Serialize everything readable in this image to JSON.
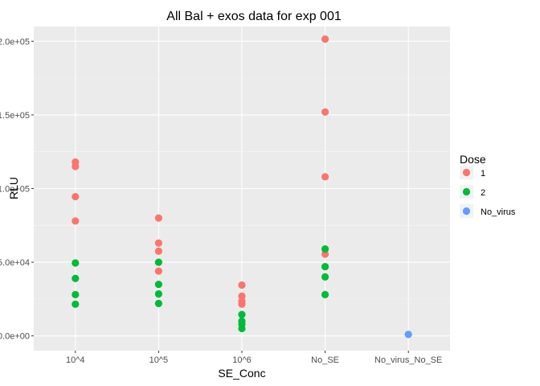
{
  "chart_data": {
    "type": "scatter",
    "title": "All Bal + exos data for exp 001",
    "xlabel": "SE_Conc",
    "ylabel": "RLU",
    "categories": [
      "10^4",
      "10^5",
      "10^6",
      "No_SE",
      "No_virus_No_SE"
    ],
    "ylim": [
      -10000,
      210000
    ],
    "yticks": [
      {
        "value": 0,
        "label": "0.0e+00"
      },
      {
        "value": 50000,
        "label": "5.0e+04"
      },
      {
        "value": 100000,
        "label": "1.0e+05"
      },
      {
        "value": 150000,
        "label": "1.5e+05"
      },
      {
        "value": 200000,
        "label": "2.0e+05"
      }
    ],
    "grid": true,
    "legend": {
      "title": "Dose",
      "position": "right",
      "entries": [
        "1",
        "2",
        "No_virus"
      ]
    },
    "series": [
      {
        "name": "1",
        "color": "#F8766D",
        "points": [
          {
            "x": "10^4",
            "y": 118000
          },
          {
            "x": "10^4",
            "y": 115000
          },
          {
            "x": "10^4",
            "y": 94500
          },
          {
            "x": "10^4",
            "y": 78000
          },
          {
            "x": "10^5",
            "y": 80000
          },
          {
            "x": "10^5",
            "y": 63000
          },
          {
            "x": "10^5",
            "y": 57500
          },
          {
            "x": "10^5",
            "y": 44000
          },
          {
            "x": "10^6",
            "y": 34500
          },
          {
            "x": "10^6",
            "y": 27000
          },
          {
            "x": "10^6",
            "y": 23500
          },
          {
            "x": "10^6",
            "y": 21500
          },
          {
            "x": "No_SE",
            "y": 201500
          },
          {
            "x": "No_SE",
            "y": 152000
          },
          {
            "x": "No_SE",
            "y": 108000
          },
          {
            "x": "No_SE",
            "y": 55500
          }
        ]
      },
      {
        "name": "2",
        "color": "#00BA38",
        "points": [
          {
            "x": "10^4",
            "y": 49500
          },
          {
            "x": "10^4",
            "y": 39000
          },
          {
            "x": "10^4",
            "y": 28000
          },
          {
            "x": "10^4",
            "y": 21500
          },
          {
            "x": "10^5",
            "y": 50000
          },
          {
            "x": "10^5",
            "y": 35000
          },
          {
            "x": "10^5",
            "y": 28500
          },
          {
            "x": "10^5",
            "y": 22000
          },
          {
            "x": "10^6",
            "y": 14500
          },
          {
            "x": "10^6",
            "y": 10000
          },
          {
            "x": "10^6",
            "y": 8000
          },
          {
            "x": "10^6",
            "y": 5000
          },
          {
            "x": "No_SE",
            "y": 59000
          },
          {
            "x": "No_SE",
            "y": 47000
          },
          {
            "x": "No_SE",
            "y": 40000
          },
          {
            "x": "No_SE",
            "y": 28000
          }
        ]
      },
      {
        "name": "No_virus",
        "color": "#619CFF",
        "points": [
          {
            "x": "No_virus_No_SE",
            "y": 1000
          }
        ]
      }
    ]
  }
}
